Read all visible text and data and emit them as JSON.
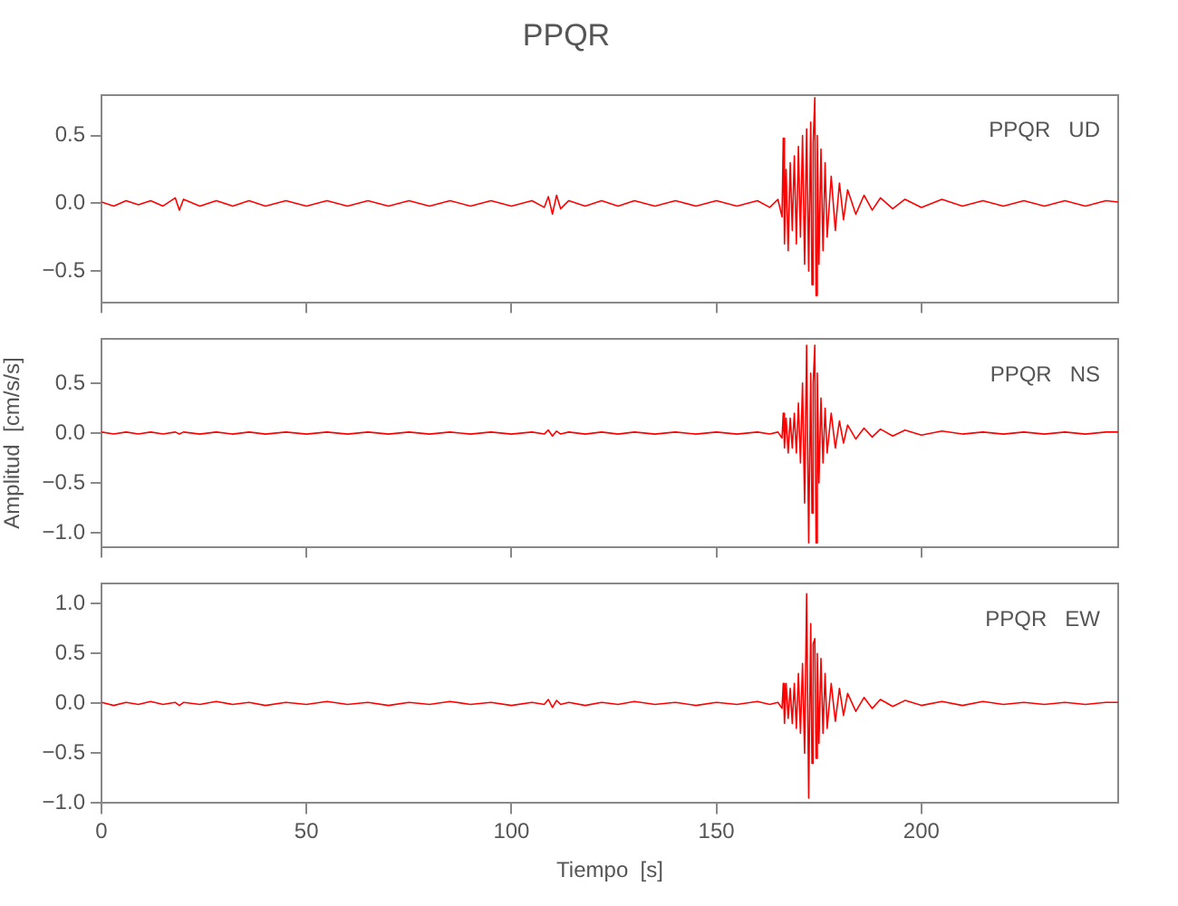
{
  "chart_data": [
    {
      "type": "line",
      "title": "PPQR",
      "annotations": [
        "PPQR   UD"
      ],
      "tick_labels": "y",
      "grid": false,
      "x": [
        0,
        3,
        6,
        9,
        12,
        15,
        18,
        19,
        20,
        24,
        28,
        32,
        36,
        40,
        45,
        50,
        55,
        60,
        65,
        70,
        75,
        80,
        85,
        90,
        95,
        100,
        105,
        108,
        109,
        110,
        111,
        112,
        114,
        118,
        122,
        126,
        130,
        135,
        140,
        145,
        150,
        155,
        160,
        163,
        165,
        166,
        166.3,
        166.6,
        167,
        167.5,
        168,
        168.5,
        169,
        169.5,
        170,
        170.5,
        171,
        171.5,
        172,
        172.5,
        173,
        173.3,
        173.6,
        174,
        174.3,
        174.6,
        175,
        175.5,
        176,
        176.5,
        177,
        178,
        179,
        180,
        181,
        182,
        184,
        186,
        188,
        190,
        193,
        196,
        200,
        205,
        210,
        215,
        220,
        225,
        230,
        235,
        240,
        245,
        248
      ],
      "xlim": [
        0,
        248
      ],
      "xticks": [
        0,
        50,
        100,
        150,
        200
      ],
      "ylim": [
        -0.73,
        0.8
      ],
      "yticks": [
        {
          "value": -0.5,
          "label": "−0.5"
        },
        {
          "value": 0,
          "label": "0.0"
        },
        0.5
      ],
      "series": [
        {
          "color": "#ff0000",
          "values": [
            0.01,
            -0.02,
            0.02,
            -0.01,
            0.02,
            -0.02,
            0.04,
            -0.05,
            0.03,
            -0.02,
            0.02,
            -0.02,
            0.02,
            -0.02,
            0.02,
            -0.02,
            0.02,
            -0.02,
            0.02,
            -0.02,
            0.02,
            -0.02,
            0.02,
            -0.02,
            0.02,
            -0.02,
            0.02,
            -0.03,
            0.05,
            -0.08,
            0.06,
            -0.04,
            0.02,
            -0.02,
            0.02,
            -0.02,
            0.02,
            -0.02,
            0.02,
            -0.02,
            0.02,
            -0.02,
            0.02,
            -0.03,
            0.03,
            -0.1,
            0.48,
            -0.3,
            0.25,
            -0.35,
            0.3,
            -0.2,
            0.35,
            -0.3,
            0.42,
            -0.25,
            0.5,
            -0.45,
            0.55,
            -0.5,
            0.6,
            -0.6,
            0.45,
            0.78,
            -0.68,
            0.5,
            -0.45,
            0.4,
            -0.35,
            0.3,
            -0.25,
            0.2,
            -0.2,
            0.15,
            -0.12,
            0.1,
            -0.08,
            0.06,
            -0.05,
            0.04,
            -0.04,
            0.03,
            -0.03,
            0.03,
            -0.02,
            0.02,
            -0.02,
            0.02,
            -0.02,
            0.02,
            -0.02,
            0.02,
            0.01
          ]
        }
      ]
    },
    {
      "type": "line",
      "ylabel": "Amplitud  [cm/s/s]",
      "annotations": [
        "PPQR   NS"
      ],
      "tick_labels": "y",
      "grid": false,
      "x": [
        0,
        3,
        6,
        9,
        12,
        15,
        18,
        19,
        20,
        24,
        28,
        32,
        36,
        40,
        45,
        50,
        55,
        60,
        65,
        70,
        75,
        80,
        85,
        90,
        95,
        100,
        105,
        108,
        109,
        110,
        111,
        112,
        114,
        118,
        122,
        126,
        130,
        135,
        140,
        145,
        150,
        155,
        160,
        163,
        165,
        166,
        166.3,
        166.6,
        167,
        167.5,
        168,
        168.5,
        169,
        169.5,
        170,
        170.5,
        171,
        171.5,
        172,
        172.5,
        173,
        173.3,
        173.6,
        174,
        174.3,
        174.6,
        175,
        175.5,
        176,
        176.5,
        177,
        178,
        179,
        180,
        181,
        182,
        184,
        186,
        188,
        190,
        193,
        196,
        200,
        205,
        210,
        215,
        220,
        225,
        230,
        235,
        240,
        245,
        248
      ],
      "xlim": [
        0,
        248
      ],
      "xticks": [
        0,
        50,
        100,
        150,
        200
      ],
      "ylim": [
        -1.14,
        0.94
      ],
      "yticks": [
        {
          "value": -1,
          "label": "−1.0"
        },
        {
          "value": -0.5,
          "label": "−0.5"
        },
        {
          "value": 0,
          "label": "0.0"
        },
        0.5
      ],
      "series": [
        {
          "color": "#ff0000",
          "values": [
            0.01,
            -0.01,
            0.01,
            -0.01,
            0.01,
            -0.01,
            0.01,
            -0.01,
            0.01,
            -0.01,
            0.01,
            -0.01,
            0.01,
            -0.01,
            0.01,
            -0.01,
            0.01,
            -0.01,
            0.01,
            -0.01,
            0.01,
            -0.01,
            0.01,
            -0.01,
            0.01,
            -0.01,
            0.01,
            -0.01,
            0.03,
            -0.03,
            0.02,
            -0.01,
            0.01,
            -0.01,
            0.01,
            -0.01,
            0.01,
            -0.01,
            0.01,
            -0.01,
            0.01,
            -0.01,
            0.01,
            -0.01,
            0.01,
            -0.05,
            0.2,
            -0.15,
            0.15,
            -0.2,
            0.15,
            -0.15,
            0.2,
            -0.2,
            0.3,
            -0.3,
            0.5,
            -0.7,
            0.88,
            -1.1,
            0.6,
            -0.8,
            0.5,
            0.88,
            -1.1,
            0.6,
            -0.5,
            0.35,
            -0.3,
            0.25,
            -0.2,
            0.2,
            -0.15,
            0.12,
            -0.1,
            0.08,
            -0.06,
            0.05,
            -0.04,
            0.04,
            -0.03,
            0.03,
            -0.02,
            0.02,
            -0.01,
            0.01,
            -0.01,
            0.01,
            -0.01,
            0.01,
            -0.01,
            0.01,
            0.01
          ]
        }
      ]
    },
    {
      "type": "line",
      "xlabel": "Tiempo  [s]",
      "annotations": [
        "PPQR   EW"
      ],
      "grid": false,
      "x": [
        0,
        3,
        6,
        9,
        12,
        15,
        18,
        19,
        20,
        24,
        28,
        32,
        36,
        40,
        45,
        50,
        55,
        60,
        65,
        70,
        75,
        80,
        85,
        90,
        95,
        100,
        105,
        108,
        109,
        110,
        111,
        112,
        114,
        118,
        122,
        126,
        130,
        135,
        140,
        145,
        150,
        155,
        160,
        163,
        165,
        166,
        166.3,
        166.6,
        167,
        167.5,
        168,
        168.5,
        169,
        169.5,
        170,
        170.5,
        171,
        171.5,
        172,
        172.5,
        173,
        173.3,
        173.6,
        174,
        174.3,
        174.6,
        175,
        175.5,
        176,
        176.5,
        177,
        178,
        179,
        180,
        181,
        182,
        184,
        186,
        188,
        190,
        193,
        196,
        200,
        205,
        210,
        215,
        220,
        225,
        230,
        235,
        240,
        245,
        248
      ],
      "xlim": [
        0,
        248
      ],
      "xticks": [
        0,
        50,
        100,
        150,
        200
      ],
      "ylim": [
        -1,
        1.2
      ],
      "yticks": [
        {
          "value": -1,
          "label": "−1.0"
        },
        {
          "value": -0.5,
          "label": "−0.5"
        },
        {
          "value": 0,
          "label": "0.0"
        },
        {
          "value": 0.5,
          "label": "0.5"
        },
        {
          "value": 1,
          "label": "1.0"
        }
      ],
      "series": [
        {
          "color": "#ff0000",
          "values": [
            0.01,
            -0.02,
            0.01,
            -0.01,
            0.02,
            -0.01,
            0.01,
            -0.02,
            0.01,
            -0.01,
            0.02,
            -0.01,
            0.01,
            -0.02,
            0.01,
            -0.01,
            0.02,
            -0.01,
            0.01,
            -0.02,
            0.01,
            -0.01,
            0.02,
            -0.01,
            0.01,
            -0.02,
            0.01,
            -0.01,
            0.04,
            -0.04,
            0.03,
            -0.01,
            0.01,
            -0.02,
            0.01,
            -0.01,
            0.02,
            -0.01,
            0.01,
            -0.02,
            0.01,
            -0.01,
            0.02,
            -0.01,
            0.01,
            -0.05,
            0.2,
            -0.2,
            0.2,
            -0.15,
            0.15,
            -0.2,
            0.2,
            -0.25,
            0.3,
            -0.3,
            0.4,
            -0.5,
            1.1,
            -0.95,
            0.8,
            -0.6,
            0.6,
            0.65,
            -0.55,
            0.5,
            -0.4,
            0.45,
            -0.3,
            0.3,
            -0.25,
            0.2,
            -0.18,
            0.15,
            -0.12,
            0.1,
            -0.08,
            0.06,
            -0.05,
            0.04,
            -0.03,
            0.03,
            -0.02,
            0.02,
            -0.02,
            0.02,
            -0.01,
            0.01,
            -0.01,
            0.01,
            -0.01,
            0.01,
            0.01
          ]
        }
      ]
    }
  ]
}
